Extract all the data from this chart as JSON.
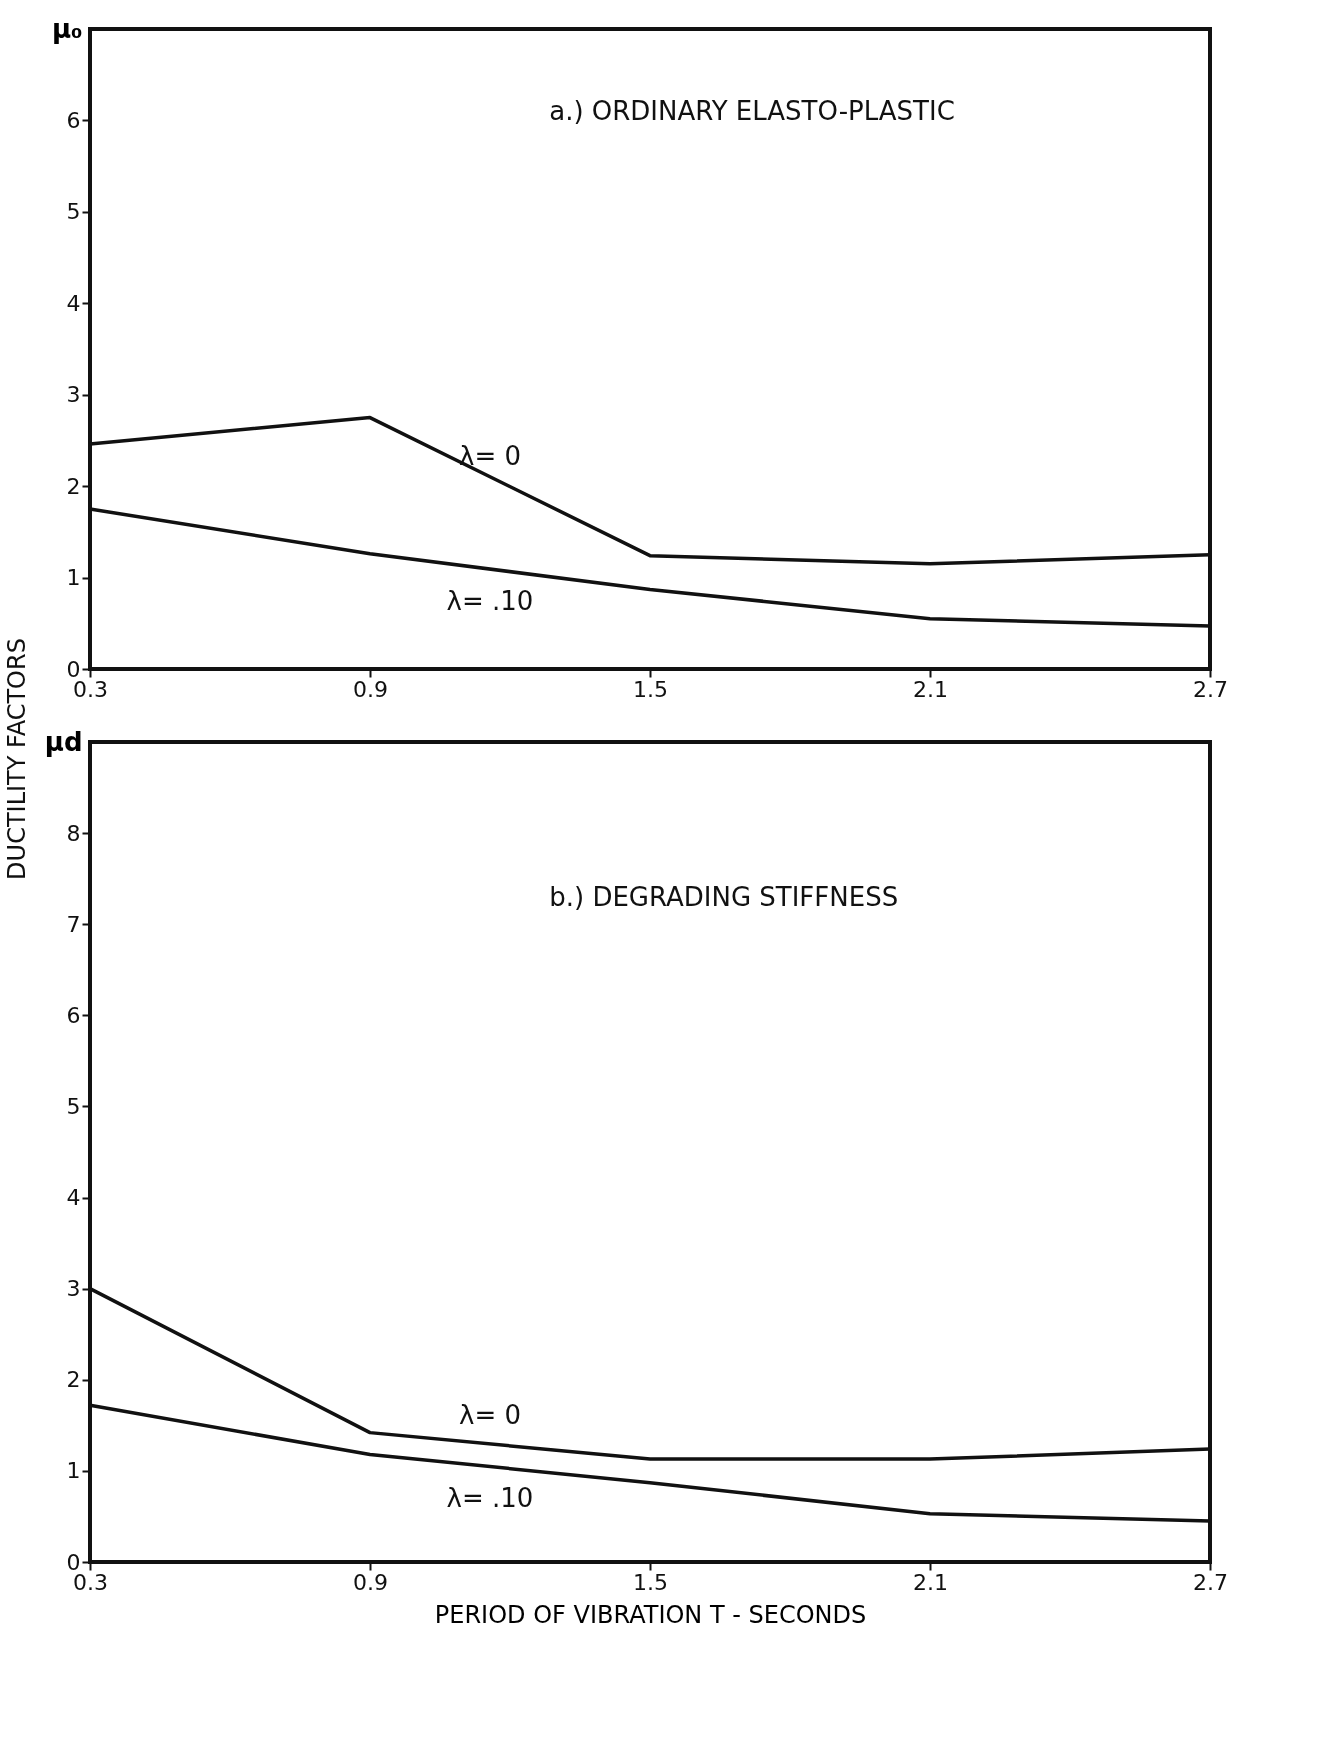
{
  "chart_data": [
    {
      "type": "line",
      "title": "a.) ORDINARY ELASTO-PLASTIC",
      "ylabel": "μ₀",
      "annotations": [
        "DUCTILITY FACTORS"
      ],
      "x": [
        0.3,
        0.9,
        1.5,
        2.1,
        2.7
      ],
      "xlim": [
        0.3,
        2.7
      ],
      "xticks": [
        0.3,
        0.9,
        1.5,
        2.1,
        2.7
      ],
      "ylim": [
        0,
        7
      ],
      "yticks": [
        0,
        1,
        2,
        3,
        4,
        5,
        6
      ],
      "grid": false,
      "line_style": "solid",
      "marker": "none",
      "series": [
        {
          "name": "λ= 0",
          "color": "#111111",
          "values": [
            2.46,
            2.75,
            1.24,
            1.15,
            1.25
          ]
        },
        {
          "name": "λ= .10",
          "color": "#111111",
          "values": [
            1.75,
            1.26,
            0.87,
            0.55,
            0.47
          ]
        }
      ]
    },
    {
      "type": "line",
      "title": "b.) DEGRADING STIFFNESS",
      "ylabel": "μd",
      "xlabel": "PERIOD OF VIBRATION  T  -  SECONDS",
      "x": [
        0.3,
        0.9,
        1.5,
        2.1,
        2.7
      ],
      "xlim": [
        0.3,
        2.7
      ],
      "xticks": [
        0.3,
        0.9,
        1.5,
        2.1,
        2.7
      ],
      "ylim": [
        0,
        9
      ],
      "yticks": [
        0,
        1,
        2,
        3,
        4,
        5,
        6,
        7,
        8
      ],
      "grid": false,
      "line_style": "solid",
      "marker": "none",
      "series": [
        {
          "name": "λ= 0",
          "color": "#111111",
          "values": [
            3.0,
            1.42,
            1.13,
            1.13,
            1.24
          ]
        },
        {
          "name": "λ= .10",
          "color": "#111111",
          "values": [
            1.72,
            1.18,
            0.87,
            0.53,
            0.45
          ]
        }
      ]
    }
  ]
}
